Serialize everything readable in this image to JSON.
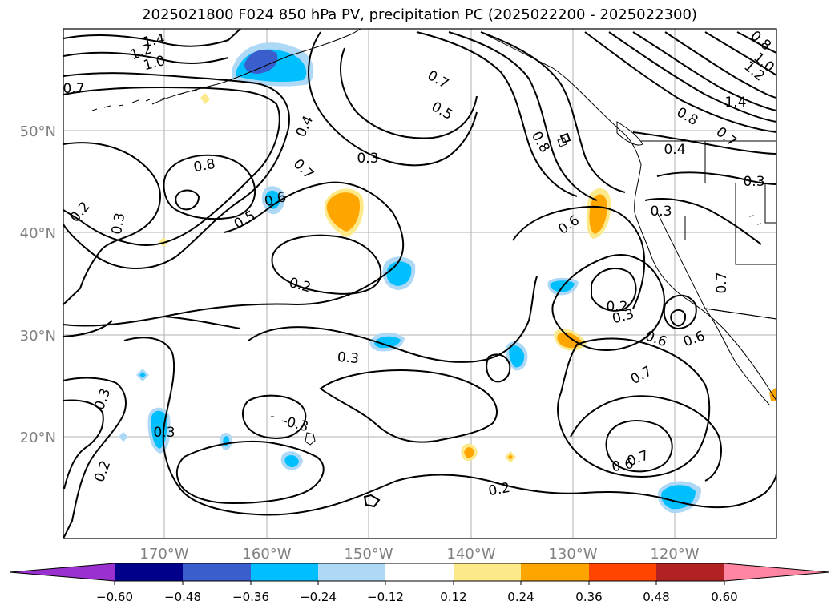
{
  "title": "2025021800 F024 850 hPa PV, precipitation PC (2025022200 - 2025022300)",
  "map": {
    "lat_labels": [
      "50°N",
      "40°N",
      "30°N",
      "20°N"
    ],
    "lon_labels": [
      "170°W",
      "160°W",
      "150°W",
      "140°W",
      "130°W",
      "120°W"
    ],
    "label_color": "#808080"
  },
  "contour_labels": [
    {
      "text": "1.4"
    },
    {
      "text": "1.2"
    },
    {
      "text": "1.0"
    },
    {
      "text": "0.7"
    },
    {
      "text": "0.8"
    },
    {
      "text": "0.3"
    },
    {
      "text": "0.2"
    },
    {
      "text": "0.3"
    },
    {
      "text": "0.4"
    },
    {
      "text": "0.7"
    },
    {
      "text": "0.6"
    },
    {
      "text": "0.5"
    },
    {
      "text": "0.3"
    },
    {
      "text": "0.2"
    },
    {
      "text": "0.3"
    },
    {
      "text": "0.7"
    },
    {
      "text": "0.5"
    },
    {
      "text": "0.8"
    },
    {
      "text": "0.6"
    },
    {
      "text": "0.2"
    },
    {
      "text": "0.3"
    },
    {
      "text": "0.6"
    },
    {
      "text": "0.6"
    },
    {
      "text": "0.7"
    },
    {
      "text": "0.6"
    },
    {
      "text": "0.7"
    },
    {
      "text": "0.2"
    },
    {
      "text": "0.3"
    },
    {
      "text": "0.2"
    },
    {
      "text": "0.3"
    },
    {
      "text": "0.4"
    },
    {
      "text": "0.3"
    },
    {
      "text": "0.3"
    },
    {
      "text": "1.4"
    },
    {
      "text": "0.8"
    },
    {
      "text": "1.0"
    },
    {
      "text": "1.2"
    },
    {
      "text": "0.8"
    },
    {
      "text": "0.7"
    },
    {
      "text": "0.7"
    }
  ],
  "colorbar": {
    "ticks": [
      "−0.60",
      "−0.48",
      "−0.36",
      "−0.24",
      "−0.12",
      "0.12",
      "0.24",
      "0.36",
      "0.48",
      "0.60"
    ],
    "colors": [
      "#9b30d0",
      "#00008b",
      "#3a5fcd",
      "#00bfff",
      "#add8f6",
      "#ffffff",
      "#fce98a",
      "#ffa500",
      "#ff4500",
      "#b22222",
      "#ff85a2"
    ]
  }
}
